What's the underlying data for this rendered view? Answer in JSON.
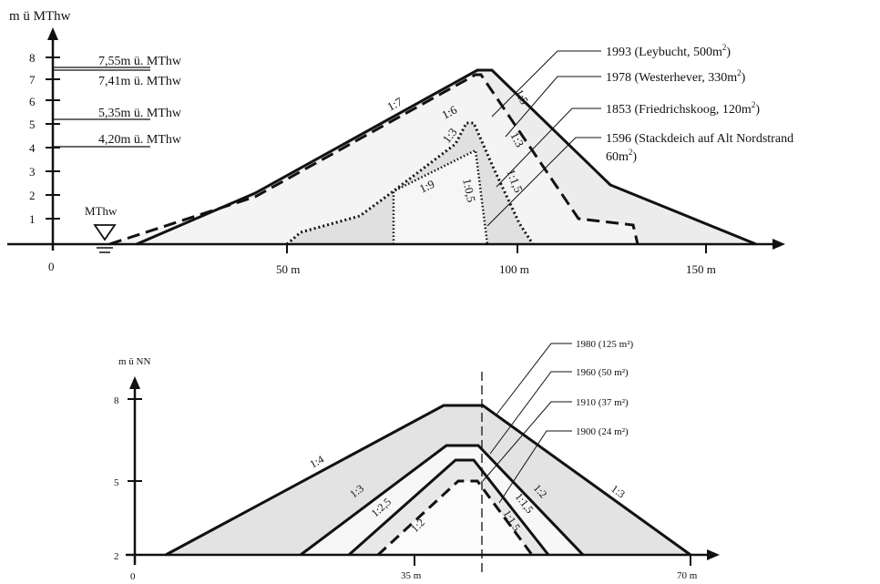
{
  "top": {
    "y_axis_label": "m ü MThw",
    "y_ticks": [
      "8",
      "7",
      "6",
      "5",
      "4",
      "3",
      "2",
      "1"
    ],
    "x_ticks": [
      "0",
      "50 m",
      "100 m",
      "150 m"
    ],
    "mthw_label": "MThw",
    "level_labels": [
      "7,55m ü.  MThw",
      "7,41m ü.  MThw",
      "5,35m ü.  MThw",
      "4,20m ü.  MThw"
    ],
    "legend": [
      {
        "text": "1993 (Leybucht, 500m",
        "sup": "2",
        "tail": ")"
      },
      {
        "text": "1978 (Westerhever, 330m",
        "sup": "2",
        "tail": ")"
      },
      {
        "text": "1853 (Friedrichskoog, 120m",
        "sup": "2",
        "tail": ")"
      },
      {
        "text": "1596 (Stackdeich auf Alt Nordstrand",
        "sup": "",
        "tail": ""
      },
      {
        "text": "60m",
        "sup": "2",
        "tail": ")"
      }
    ],
    "slopes": [
      "1:7",
      "1:6",
      "1:5",
      "1:3",
      "1:3",
      "1:9",
      "1:0,5",
      "1:1,5"
    ]
  },
  "bottom": {
    "y_axis_label": "m ü NN",
    "y_ticks": [
      "8",
      "5",
      "2"
    ],
    "x_ticks": [
      "0",
      "35 m",
      "70 m"
    ],
    "legend": [
      "1980 (125 m²)",
      "1960 (50 m²)",
      "1910 (37 m²)",
      "1900 (24 m²)"
    ],
    "slopes": [
      "1:4",
      "1:3",
      "1:2,5",
      "1:2",
      "1:3",
      "1:2",
      "1:1,5",
      "1:1,5"
    ]
  },
  "colors": {
    "ink": "#111111",
    "fill_light": "#f1f1f1",
    "fill_mid": "#dcdcdc"
  }
}
